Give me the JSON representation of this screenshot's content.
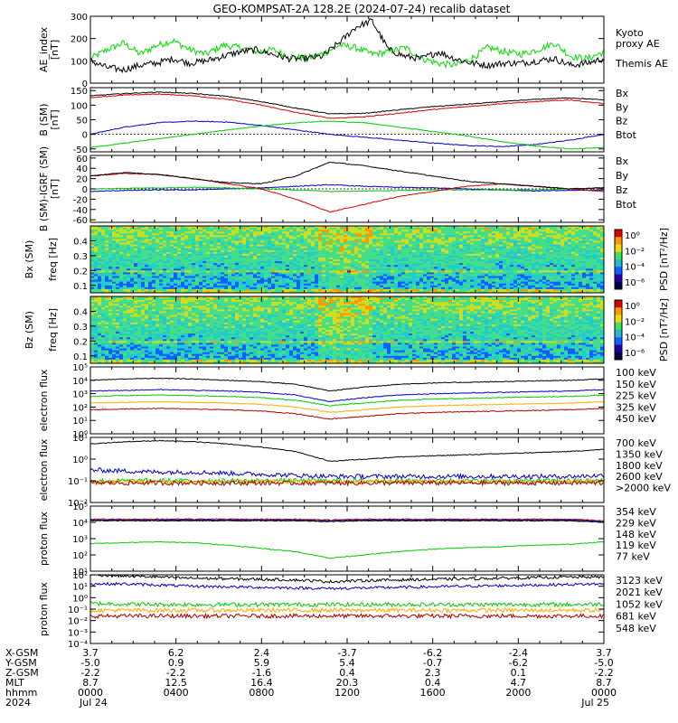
{
  "title": "GEO-KOMPSAT-2A 128.2E (2024-07-24) recalib dataset",
  "chart_data": [
    {
      "type": "line",
      "ylabel": "AE_index [nT]",
      "ylim": [
        0,
        300
      ],
      "yticks": [
        "0",
        "100",
        "200",
        "300"
      ],
      "series": [
        {
          "name": "Kyoto proxy AE",
          "color": "#00dd00",
          "values": [
            110,
            150,
            180,
            130,
            170,
            190,
            150,
            130,
            170,
            160,
            140,
            150,
            120,
            110,
            130,
            170,
            160,
            130,
            140,
            160,
            110,
            90,
            80,
            110,
            160,
            140,
            130,
            150,
            180,
            120,
            110,
            140
          ]
        },
        {
          "name": "Themis AE",
          "color": "#000000",
          "values": [
            100,
            70,
            60,
            80,
            90,
            110,
            90,
            100,
            120,
            140,
            150,
            130,
            110,
            110,
            120,
            180,
            250,
            280,
            150,
            120,
            110,
            140,
            110,
            90,
            80,
            90,
            90,
            100,
            110,
            80,
            90,
            110
          ]
        }
      ]
    },
    {
      "type": "line",
      "ylabel": "B (SM) [nT]",
      "ylim": [
        -60,
        160
      ],
      "yticks": [
        "-50",
        "0",
        "50",
        "100",
        "150"
      ],
      "series": [
        {
          "name": "Bx",
          "color": "#0000cc",
          "values": [
            0,
            25,
            40,
            45,
            42,
            30,
            15,
            0,
            -10,
            -20,
            -30,
            -38,
            -42,
            -35,
            -20,
            0
          ]
        },
        {
          "name": "By",
          "color": "#00cc00",
          "values": [
            -45,
            -30,
            -15,
            0,
            15,
            28,
            40,
            45,
            40,
            25,
            10,
            -5,
            -25,
            -40,
            -50,
            -45
          ]
        },
        {
          "name": "Bz",
          "color": "#dd0000",
          "values": [
            125,
            135,
            138,
            132,
            120,
            100,
            75,
            55,
            60,
            72,
            85,
            95,
            105,
            112,
            118,
            105
          ]
        },
        {
          "name": "Btot",
          "color": "#000000",
          "values": [
            132,
            140,
            145,
            140,
            130,
            112,
            90,
            70,
            72,
            84,
            95,
            103,
            112,
            120,
            125,
            118
          ]
        }
      ]
    },
    {
      "type": "line",
      "ylabel": "B (SM)-IGRF (SM) [nT]",
      "ylim": [
        -65,
        65
      ],
      "yticks": [
        "-60",
        "-40",
        "-20",
        "0",
        "20",
        "40",
        "60"
      ],
      "series": [
        {
          "name": "Bx",
          "color": "#0000cc",
          "values": [
            -5,
            -3,
            -2,
            -2,
            0,
            2,
            5,
            8,
            5,
            3,
            2,
            0,
            -2,
            -4,
            -3,
            -2
          ]
        },
        {
          "name": "By",
          "color": "#00cc00",
          "values": [
            0,
            1,
            2,
            3,
            2,
            0,
            -2,
            -5,
            -4,
            -3,
            -2,
            -2,
            -2,
            -2,
            0,
            2
          ]
        },
        {
          "name": "Bz",
          "color": "#dd0000",
          "values": [
            25,
            30,
            28,
            20,
            10,
            0,
            -20,
            -45,
            -30,
            -15,
            -5,
            5,
            10,
            5,
            0,
            -5
          ]
        },
        {
          "name": "Btot",
          "color": "#000000",
          "values": [
            25,
            32,
            28,
            20,
            12,
            10,
            25,
            52,
            45,
            35,
            25,
            15,
            10,
            5,
            0,
            2
          ]
        }
      ]
    },
    {
      "type": "heatmap",
      "ylabel": "Bx (SM) freq [Hz]",
      "ylim": [
        0.05,
        0.5
      ],
      "yticks": [
        "0.1",
        "0.2",
        "0.3",
        "0.4"
      ],
      "colorbar_label": "PSD [nT²/Hz]",
      "colorbar_ticks": [
        "10⁰",
        "10⁻²",
        "10⁻⁴",
        "10⁻⁶"
      ]
    },
    {
      "type": "heatmap",
      "ylabel": "Bz (SM) freq [Hz]",
      "ylim": [
        0.05,
        0.5
      ],
      "yticks": [
        "0.1",
        "0.2",
        "0.3",
        "0.4"
      ],
      "colorbar_label": "PSD [nT²/Hz]",
      "colorbar_ticks": [
        "10⁰",
        "10⁻²",
        "10⁻⁴",
        "10⁻⁶"
      ]
    },
    {
      "type": "line",
      "ylabel": "electron flux",
      "log_exp_range": [
        0,
        5
      ],
      "yticks": [
        "10⁰",
        "10¹",
        "10²",
        "10³",
        "10⁴",
        "10⁵"
      ],
      "series": [
        {
          "name": "100 keV",
          "color": "#000000",
          "values": [
            4.0,
            4.1,
            4.15,
            4.1,
            4.0,
            3.9,
            3.7,
            3.2,
            3.5,
            3.7,
            3.8,
            3.85,
            3.9,
            3.95,
            4.0,
            4.1
          ]
        },
        {
          "name": "150 keV",
          "color": "#0000cc",
          "values": [
            3.2,
            3.25,
            3.3,
            3.25,
            3.2,
            3.1,
            2.9,
            2.4,
            2.7,
            2.9,
            3.0,
            3.05,
            3.1,
            3.15,
            3.2,
            3.3
          ]
        },
        {
          "name": "225 keV",
          "color": "#00cc00",
          "values": [
            2.8,
            2.85,
            2.9,
            2.85,
            2.8,
            2.7,
            2.5,
            2.1,
            2.3,
            2.5,
            2.6,
            2.65,
            2.7,
            2.75,
            2.8,
            2.9
          ]
        },
        {
          "name": "325 keV",
          "color": "#ffaa00",
          "values": [
            2.3,
            2.35,
            2.4,
            2.35,
            2.3,
            2.2,
            2.0,
            1.6,
            1.8,
            2.0,
            2.1,
            2.15,
            2.2,
            2.25,
            2.3,
            2.4
          ]
        },
        {
          "name": "450 keV",
          "color": "#aa0000",
          "values": [
            1.8,
            1.85,
            1.9,
            1.85,
            1.8,
            1.7,
            1.5,
            1.1,
            1.3,
            1.5,
            1.6,
            1.65,
            1.7,
            1.75,
            1.8,
            1.9
          ]
        }
      ]
    },
    {
      "type": "line",
      "ylabel": "electron flux",
      "log_exp_range": [
        -2,
        1
      ],
      "yticks": [
        "10⁻²",
        "10⁻¹",
        "10⁰",
        "10¹"
      ],
      "series": [
        {
          "name": "700 keV",
          "color": "#000000",
          "values": [
            0.7,
            0.8,
            0.85,
            0.8,
            0.7,
            0.55,
            0.35,
            -0.1,
            0.0,
            0.1,
            0.15,
            0.2,
            0.25,
            0.3,
            0.35,
            0.45
          ]
        },
        {
          "name": "1350 keV",
          "color": "#0000cc",
          "values": [
            -0.5,
            -0.55,
            -0.6,
            -0.6,
            -0.65,
            -0.7,
            -0.75,
            -0.8,
            -0.8,
            -0.8,
            -0.8,
            -0.8,
            -0.8,
            -0.8,
            -0.8,
            -0.75
          ]
        },
        {
          "name": "1800 keV",
          "color": "#00cc00",
          "values": [
            -1.0,
            -1.0,
            -1.0,
            -1.0,
            -1.0,
            -1.0,
            -1.0,
            -1.0,
            -1.0,
            -1.0,
            -1.0,
            -1.0,
            -1.0,
            -1.0,
            -1.0,
            -1.0
          ]
        },
        {
          "name": "2600 keV",
          "color": "#ffaa00",
          "values": [
            -1.05,
            -1.05,
            -1.05,
            -1.05,
            -1.05,
            -1.05,
            -1.05,
            -1.05,
            -1.05,
            -1.05,
            -1.05,
            -1.05,
            -1.05,
            -1.05,
            -1.05,
            -1.05
          ]
        },
        {
          "name": ">2000 keV",
          "color": "#aa0000",
          "values": [
            -1.1,
            -1.1,
            -1.1,
            -1.1,
            -1.1,
            -1.1,
            -1.1,
            -1.1,
            -1.1,
            -1.1,
            -1.1,
            -1.1,
            -1.1,
            -1.1,
            -1.1,
            -1.1
          ]
        }
      ]
    },
    {
      "type": "line",
      "ylabel": "proton flux",
      "log_exp_range": [
        1,
        5
      ],
      "yticks": [
        "10¹",
        "10²",
        "10³",
        "10⁴",
        "10⁵"
      ],
      "series": [
        {
          "name": "354 keV",
          "color": "#aa0000",
          "values": [
            4.2,
            4.2,
            4.2,
            4.2,
            4.2,
            4.2,
            4.2,
            4.15,
            4.2,
            4.2,
            4.2,
            4.2,
            4.2,
            4.2,
            4.2,
            4.1
          ]
        },
        {
          "name": "229 keV",
          "color": "#ffaa00",
          "values": [
            4.15,
            4.15,
            4.15,
            4.15,
            4.15,
            4.15,
            4.15,
            4.1,
            4.15,
            4.15,
            4.15,
            4.15,
            4.15,
            4.15,
            4.15,
            4.05
          ]
        },
        {
          "name": "148 keV",
          "color": "#00cc00",
          "values": [
            2.7,
            2.75,
            2.8,
            2.75,
            2.6,
            2.4,
            2.2,
            1.8,
            2.0,
            2.2,
            2.35,
            2.45,
            2.5,
            2.6,
            2.65,
            2.8
          ]
        },
        {
          "name": "119 keV",
          "color": "#0000cc",
          "values": [
            4.15,
            4.15,
            4.15,
            4.15,
            4.15,
            4.15,
            4.15,
            4.1,
            4.15,
            4.15,
            4.15,
            4.15,
            4.15,
            4.15,
            4.15,
            4.05
          ]
        },
        {
          "name": "77 keV",
          "color": "#000000",
          "values": [
            4.1,
            4.1,
            4.1,
            4.1,
            4.1,
            4.1,
            4.1,
            4.05,
            4.1,
            4.1,
            4.1,
            4.1,
            4.1,
            4.1,
            4.1,
            4.0
          ]
        }
      ]
    },
    {
      "type": "line",
      "ylabel": "proton flux",
      "log_exp_range": [
        -4,
        2
      ],
      "yticks": [
        "10⁻⁴",
        "10⁻³",
        "10⁻²",
        "10⁻¹",
        "10⁰",
        "10¹",
        "10²"
      ],
      "series": [
        {
          "name": "3123 keV",
          "color": "#aa0000",
          "values": [
            -1.6,
            -1.6,
            -1.6,
            -1.6,
            -1.6,
            -1.6,
            -1.6,
            -1.6,
            -1.6,
            -1.6,
            -1.6,
            -1.6,
            -1.6,
            -1.6,
            -1.6,
            -1.6
          ]
        },
        {
          "name": "2021 keV",
          "color": "#ffaa00",
          "values": [
            -1.1,
            -1.1,
            -1.1,
            -1.1,
            -1.1,
            -1.1,
            -1.1,
            -1.1,
            -1.1,
            -1.1,
            -1.1,
            -1.1,
            -1.1,
            -1.1,
            -1.1,
            -1.1
          ]
        },
        {
          "name": "1052 keV",
          "color": "#00cc00",
          "values": [
            -0.5,
            -0.55,
            -0.6,
            -0.6,
            -0.6,
            -0.6,
            -0.6,
            -0.6,
            -0.6,
            -0.6,
            -0.6,
            -0.6,
            -0.6,
            -0.6,
            -0.6,
            -0.55
          ]
        },
        {
          "name": "681 keV",
          "color": "#0000cc",
          "values": [
            1.2,
            1.2,
            1.1,
            1.0,
            0.95,
            0.9,
            0.85,
            0.8,
            0.85,
            0.9,
            0.95,
            1.0,
            1.05,
            1.1,
            1.15,
            1.2
          ]
        },
        {
          "name": "548 keV",
          "color": "#000000",
          "values": [
            2.0,
            1.9,
            1.8,
            1.7,
            1.65,
            1.6,
            1.55,
            1.4,
            1.5,
            1.55,
            1.6,
            1.65,
            1.7,
            1.75,
            1.8,
            1.8
          ]
        }
      ]
    }
  ],
  "xaxis": {
    "row_labels": [
      "X-GSM",
      "Y-GSM",
      "Z-GSM",
      "MLT",
      "hhmm",
      "2024"
    ],
    "columns": [
      [
        "3.7",
        "-5.0",
        "-2.2",
        "8.7",
        "0000",
        "Jul 24"
      ],
      [
        "6.2",
        "0.9",
        "-2.2",
        "12.5",
        "0400",
        ""
      ],
      [
        "2.4",
        "5.9",
        "-1.6",
        "16.4",
        "0800",
        ""
      ],
      [
        "-3.7",
        "5.4",
        "0.4",
        "20.3",
        "1200",
        ""
      ],
      [
        "-6.2",
        "-0.7",
        "2.3",
        "0.4",
        "1600",
        ""
      ],
      [
        "-2.4",
        "-6.2",
        "0.1",
        "4.7",
        "2000",
        ""
      ],
      [
        "3.7",
        "-5.0",
        "-2.2",
        "8.7",
        "0000",
        "Jul 25"
      ]
    ]
  }
}
